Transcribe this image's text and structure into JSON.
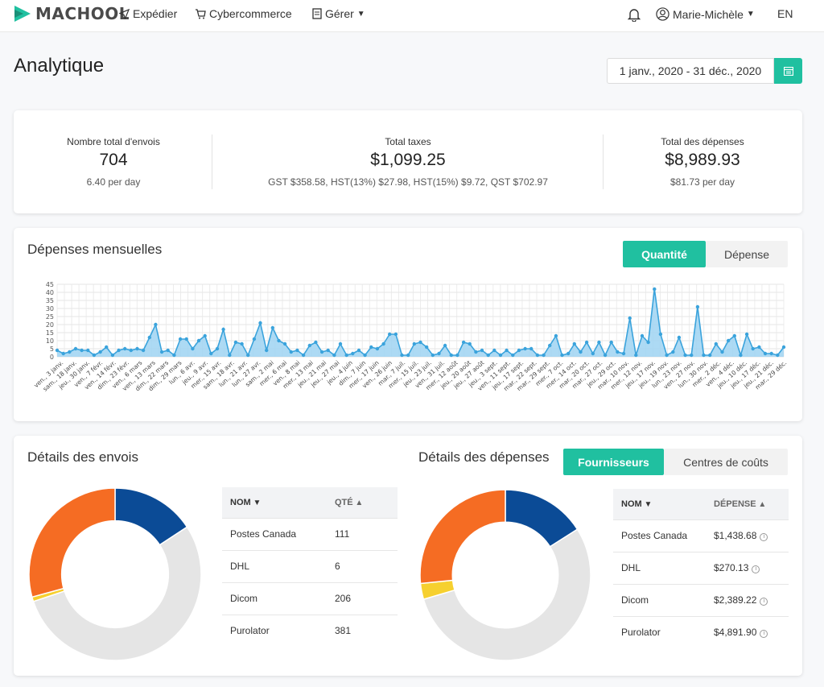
{
  "nav": {
    "brand": "MACHOOL",
    "items": [
      {
        "label": "Expédier",
        "icon": "paper-plane-icon"
      },
      {
        "label": "Cybercommerce",
        "icon": "cart-icon"
      },
      {
        "label": "Gérer",
        "icon": "document-icon"
      }
    ],
    "user": "Marie-Michèle",
    "lang": "EN"
  },
  "page": {
    "title": "Analytique",
    "date_range": "1 janv., 2020 - 31 déc., 2020"
  },
  "stats": [
    {
      "label": "Nombre total d'envois",
      "value": "704",
      "sub": "6.40 per day"
    },
    {
      "label": "Total taxes",
      "value": "$1,099.25",
      "sub": "GST $358.58, HST(13%) $27.98, HST(15%) $9.72, QST $702.97"
    },
    {
      "label": "Total des dépenses",
      "value": "$8,989.93",
      "sub": "$81.73 per day"
    }
  ],
  "monthly": {
    "title": "Dépenses mensuelles",
    "toggle": [
      "Quantité",
      "Dépense"
    ]
  },
  "envois": {
    "title": "Détails des envois",
    "col_name": "NOM",
    "col_qty": "QTÉ",
    "rows": [
      {
        "name": "Postes Canada",
        "qty": "111"
      },
      {
        "name": "DHL",
        "qty": "6"
      },
      {
        "name": "Dicom",
        "qty": "206"
      },
      {
        "name": "Purolator",
        "qty": "381"
      }
    ]
  },
  "depenses": {
    "title": "Détails des dépenses",
    "toggle": [
      "Fournisseurs",
      "Centres de coûts"
    ],
    "col_name": "NOM",
    "col_spend": "DÉPENSE",
    "rows": [
      {
        "name": "Postes Canada",
        "spend": "$1,438.68"
      },
      {
        "name": "DHL",
        "spend": "$270.13"
      },
      {
        "name": "Dicom",
        "spend": "$2,389.22"
      },
      {
        "name": "Purolator",
        "spend": "$4,891.90"
      }
    ]
  },
  "chart_data": [
    {
      "type": "area",
      "ylim": [
        0,
        45
      ],
      "yticks": [
        0,
        5,
        10,
        15,
        20,
        25,
        30,
        35,
        40,
        45
      ],
      "color": "#3aa3dc",
      "grid": true,
      "x_tick_labels": [
        "ven., 3 janv.",
        "sam., 18 janv.",
        "jeu., 30 janv.",
        "ven., 7 févr.",
        "ven., 14 févr.",
        "dim., 23 févr.",
        "ven., 6 mars",
        "ven., 13 mars",
        "dim., 22 mars",
        "dim., 29 mars",
        "lun., 6 avr.",
        "jeu., 9 avr.",
        "mer., 15 avr.",
        "sam., 18 avr.",
        "lun., 21 avr.",
        "lun., 27 avr.",
        "sam., 2 mai",
        "mer., 6 mai",
        "ven., 8 mai",
        "mer., 13 mai",
        "jeu., 21 mai",
        "jeu., 27 mai",
        "jeu., 4 juin",
        "dim., 7 juin",
        "mer., 17 juin",
        "ven., 26 juin",
        "mar., 7 juil.",
        "mer., 15 juil.",
        "jeu., 23 juil.",
        "ven., 31 juil.",
        "mer., 12 août",
        "jeu., 20 août",
        "jeu., 27 août",
        "jeu., 3 sept.",
        "ven., 11 sept.",
        "jeu., 17 sept.",
        "mar., 22 sept.",
        "mar., 29 sept.",
        "mer., 7 oct.",
        "mer., 14 oct.",
        "mar., 20 oct.",
        "mar., 27 oct.",
        "jeu., 29 oct.",
        "mar., 10 nov.",
        "mer., 12 nov.",
        "jeu., 17 nov.",
        "jeu., 19 nov.",
        "lun., 23 nov.",
        "ven., 27 nov.",
        "lun., 30 nov.",
        "mer., 2 déc.",
        "ven., 4 déc.",
        "jeu., 10 déc.",
        "jeu., 17 déc.",
        "jeu., 21 déc.",
        "mar., 29 déc."
      ],
      "values": [
        4,
        2,
        3,
        5,
        4,
        4,
        1,
        3,
        6,
        1,
        4,
        5,
        4,
        5,
        4,
        12,
        20,
        3,
        4,
        1,
        11,
        11,
        5,
        10,
        13,
        2,
        5,
        17,
        1,
        9,
        8,
        1,
        11,
        21,
        4,
        18,
        10,
        8,
        3,
        4,
        1,
        7,
        9,
        3,
        4,
        1,
        8,
        1,
        2,
        4,
        1,
        6,
        5,
        8,
        14,
        14,
        1,
        1,
        8,
        9,
        6,
        1,
        2,
        7,
        1,
        1,
        9,
        8,
        3,
        4,
        1,
        4,
        1,
        4,
        1,
        4,
        5,
        5,
        1,
        1,
        7,
        13,
        1,
        2,
        8,
        3,
        9,
        2,
        9,
        1,
        9,
        3,
        2,
        24,
        1,
        13,
        9,
        42,
        14,
        1,
        3,
        12,
        1,
        1,
        31,
        1,
        1,
        8,
        3,
        10,
        13,
        1,
        14,
        5,
        6,
        2,
        2,
        1,
        6
      ],
      "series": [
        {
          "name": "Quantité"
        }
      ]
    },
    {
      "type": "pie",
      "donut": true,
      "labels": [
        "Postes Canada",
        "DHL",
        "Dicom",
        "Purolator"
      ],
      "values": [
        111,
        6,
        206,
        381
      ],
      "colors": [
        "#0b4b96",
        "#f6d02f",
        "#f56c23",
        "#e5e5e5"
      ],
      "slice_order": [
        "Postes Canada",
        "Purolator",
        "DHL",
        "Dicom"
      ]
    },
    {
      "type": "pie",
      "donut": true,
      "labels": [
        "Postes Canada",
        "DHL",
        "Dicom",
        "Purolator"
      ],
      "values": [
        1438.68,
        270.13,
        2389.22,
        4891.9
      ],
      "colors": [
        "#0b4b96",
        "#f6d02f",
        "#f56c23",
        "#e5e5e5"
      ],
      "slice_order": [
        "Postes Canada",
        "Purolator",
        "DHL",
        "Dicom"
      ]
    }
  ]
}
